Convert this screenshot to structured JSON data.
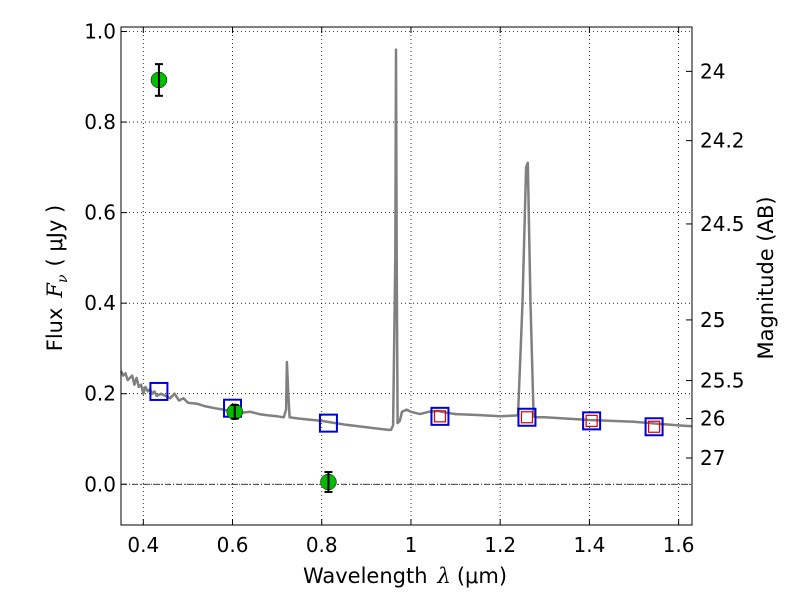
{
  "chart_data": {
    "type": "scatter",
    "xlabel_prefix": "Wavelength",
    "xlabel_symbol": "λ",
    "xlabel_unit": "(μm)",
    "ylabel_prefix": "Flux",
    "ylabel_symbol": "F",
    "ylabel_subscript": "ν",
    "ylabel_unit": "( μJy )",
    "y2label": "Magnitude (AB)",
    "xlim": [
      0.35,
      1.63
    ],
    "ylim": [
      -0.09,
      1.01
    ],
    "grid": true,
    "colors": {
      "spectrum": "#808080",
      "observed": "#00bb00",
      "model_square": "#0000dd",
      "model_inner": "#dd0000",
      "errorbar": "#000000"
    },
    "x_ticks": [
      {
        "value": 0.4,
        "label": "0.4"
      },
      {
        "value": 0.6,
        "label": "0.6"
      },
      {
        "value": 0.8,
        "label": "0.8"
      },
      {
        "value": 1.0,
        "label": "1"
      },
      {
        "value": 1.2,
        "label": "1.2"
      },
      {
        "value": 1.4,
        "label": "1.4"
      },
      {
        "value": 1.6,
        "label": "1.6"
      }
    ],
    "y_ticks": [
      {
        "value": 0.0,
        "label": "0.0"
      },
      {
        "value": 0.2,
        "label": "0.2"
      },
      {
        "value": 0.4,
        "label": "0.4"
      },
      {
        "value": 0.6,
        "label": "0.6"
      },
      {
        "value": 0.8,
        "label": "0.8"
      },
      {
        "value": 1.0,
        "label": "1.0"
      }
    ],
    "y2_ticks": [
      {
        "flux": 0.912,
        "label": "24"
      },
      {
        "flux": 0.759,
        "label": "24.2"
      },
      {
        "flux": 0.575,
        "label": "24.5"
      },
      {
        "flux": 0.363,
        "label": "25"
      },
      {
        "flux": 0.229,
        "label": "25.5"
      },
      {
        "flux": 0.145,
        "label": "26"
      },
      {
        "flux": 0.058,
        "label": "27"
      }
    ],
    "spectrum": {
      "x": [
        0.35,
        0.355,
        0.36,
        0.365,
        0.37,
        0.375,
        0.38,
        0.385,
        0.39,
        0.395,
        0.4,
        0.405,
        0.41,
        0.415,
        0.42,
        0.425,
        0.43,
        0.44,
        0.45,
        0.46,
        0.47,
        0.48,
        0.49,
        0.5,
        0.52,
        0.54,
        0.56,
        0.58,
        0.6,
        0.62,
        0.64,
        0.66,
        0.68,
        0.7,
        0.715,
        0.72,
        0.722,
        0.725,
        0.728,
        0.735,
        0.75,
        0.8,
        0.85,
        0.9,
        0.95,
        0.955,
        0.96,
        0.965,
        0.9665,
        0.968,
        0.97,
        0.975,
        0.98,
        0.99,
        1.0,
        1.02,
        1.04,
        1.06,
        1.08,
        1.1,
        1.15,
        1.2,
        1.24,
        1.25,
        1.258,
        1.262,
        1.268,
        1.275,
        1.28,
        1.3,
        1.35,
        1.4,
        1.45,
        1.5,
        1.55,
        1.6,
        1.63
      ],
      "y": [
        0.25,
        0.24,
        0.245,
        0.23,
        0.235,
        0.24,
        0.22,
        0.235,
        0.215,
        0.22,
        0.2,
        0.215,
        0.205,
        0.21,
        0.2,
        0.205,
        0.195,
        0.2,
        0.195,
        0.19,
        0.2,
        0.185,
        0.19,
        0.18,
        0.178,
        0.172,
        0.168,
        0.165,
        0.16,
        0.158,
        0.16,
        0.155,
        0.152,
        0.15,
        0.148,
        0.165,
        0.27,
        0.2,
        0.148,
        0.147,
        0.145,
        0.14,
        0.132,
        0.126,
        0.12,
        0.12,
        0.13,
        0.5,
        0.96,
        0.5,
        0.135,
        0.14,
        0.16,
        0.165,
        0.16,
        0.155,
        0.16,
        0.162,
        0.158,
        0.155,
        0.153,
        0.15,
        0.152,
        0.4,
        0.7,
        0.71,
        0.4,
        0.15,
        0.148,
        0.148,
        0.145,
        0.142,
        0.14,
        0.138,
        0.134,
        0.13,
        0.128
      ]
    },
    "observed": [
      {
        "x": 0.435,
        "y": 0.893,
        "err": 0.035
      },
      {
        "x": 0.605,
        "y": 0.16,
        "err": 0.015
      },
      {
        "x": 0.815,
        "y": 0.005,
        "err": 0.022
      }
    ],
    "model_points": [
      {
        "x": 0.435,
        "y": 0.205,
        "inner": false
      },
      {
        "x": 0.6,
        "y": 0.168,
        "inner": false
      },
      {
        "x": 0.815,
        "y": 0.135,
        "inner": false
      },
      {
        "x": 1.065,
        "y": 0.15,
        "inner": true
      },
      {
        "x": 1.26,
        "y": 0.148,
        "inner": true
      },
      {
        "x": 1.405,
        "y": 0.14,
        "inner": true
      },
      {
        "x": 1.545,
        "y": 0.127,
        "inner": true
      }
    ]
  }
}
